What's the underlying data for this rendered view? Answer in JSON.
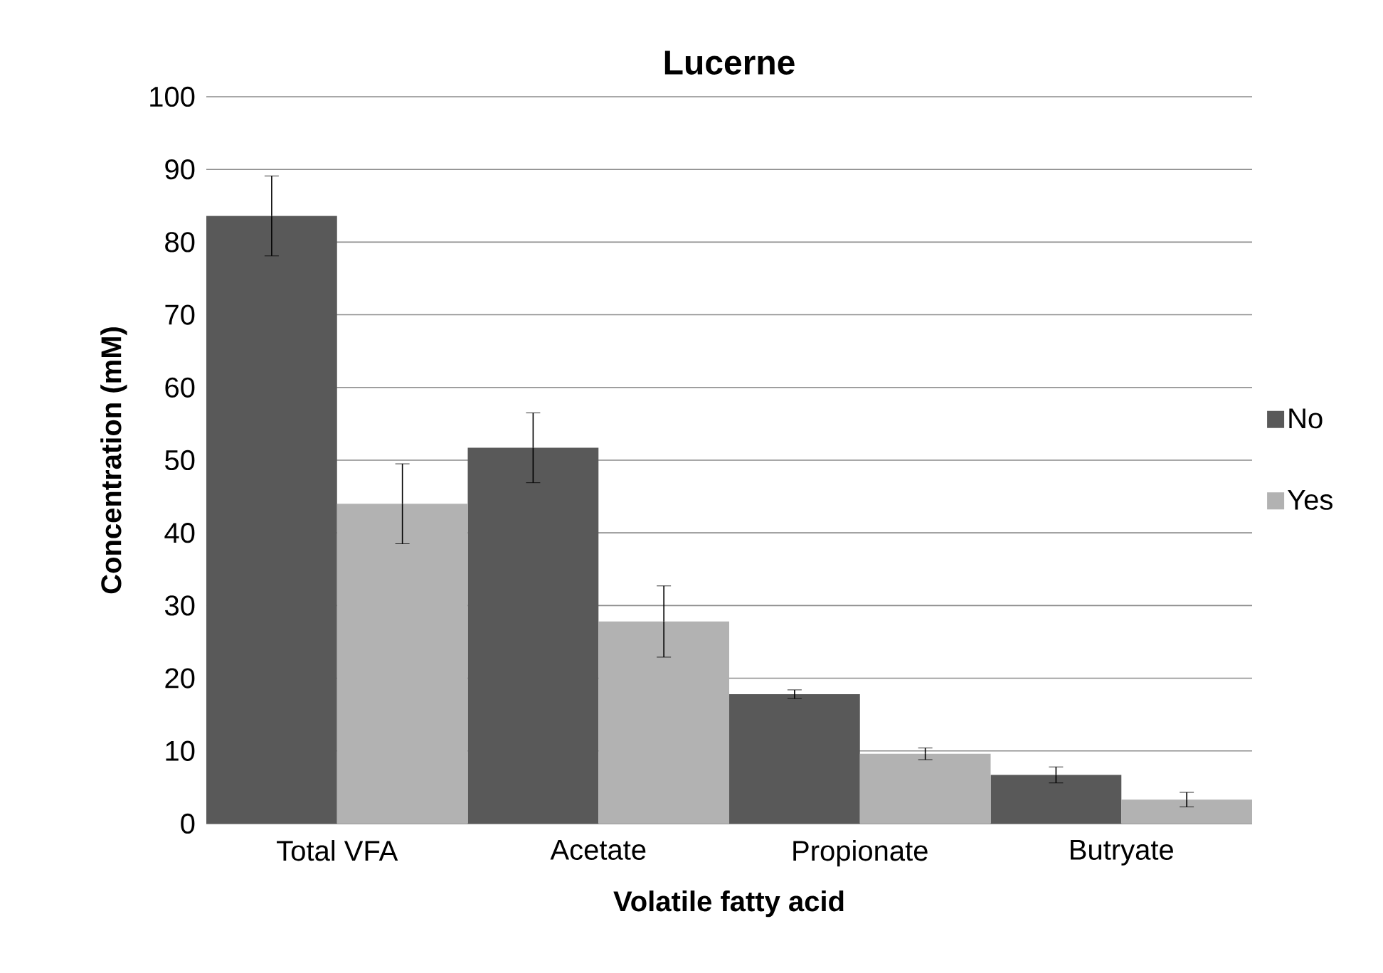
{
  "chart_data": {
    "type": "bar",
    "title": "Lucerne",
    "xlabel": "Volatile fatty acid",
    "ylabel": "Concentration (mM)",
    "categories": [
      "Total VFA",
      "Acetate",
      "Propionate",
      "Butryate"
    ],
    "series": [
      {
        "name": "No",
        "color": "#595959",
        "values": [
          83.6,
          51.7,
          17.8,
          6.7
        ],
        "errors": [
          5.5,
          4.8,
          0.6,
          1.1
        ]
      },
      {
        "name": "Yes",
        "color": "#b2b2b2",
        "values": [
          44.0,
          27.8,
          9.6,
          3.3
        ],
        "errors": [
          5.5,
          4.9,
          0.8,
          1.0
        ]
      }
    ],
    "ylim": [
      0,
      100
    ],
    "yticks": [
      0,
      10,
      20,
      30,
      40,
      50,
      60,
      70,
      80,
      90,
      100
    ],
    "grid": "y",
    "legend": "right"
  }
}
